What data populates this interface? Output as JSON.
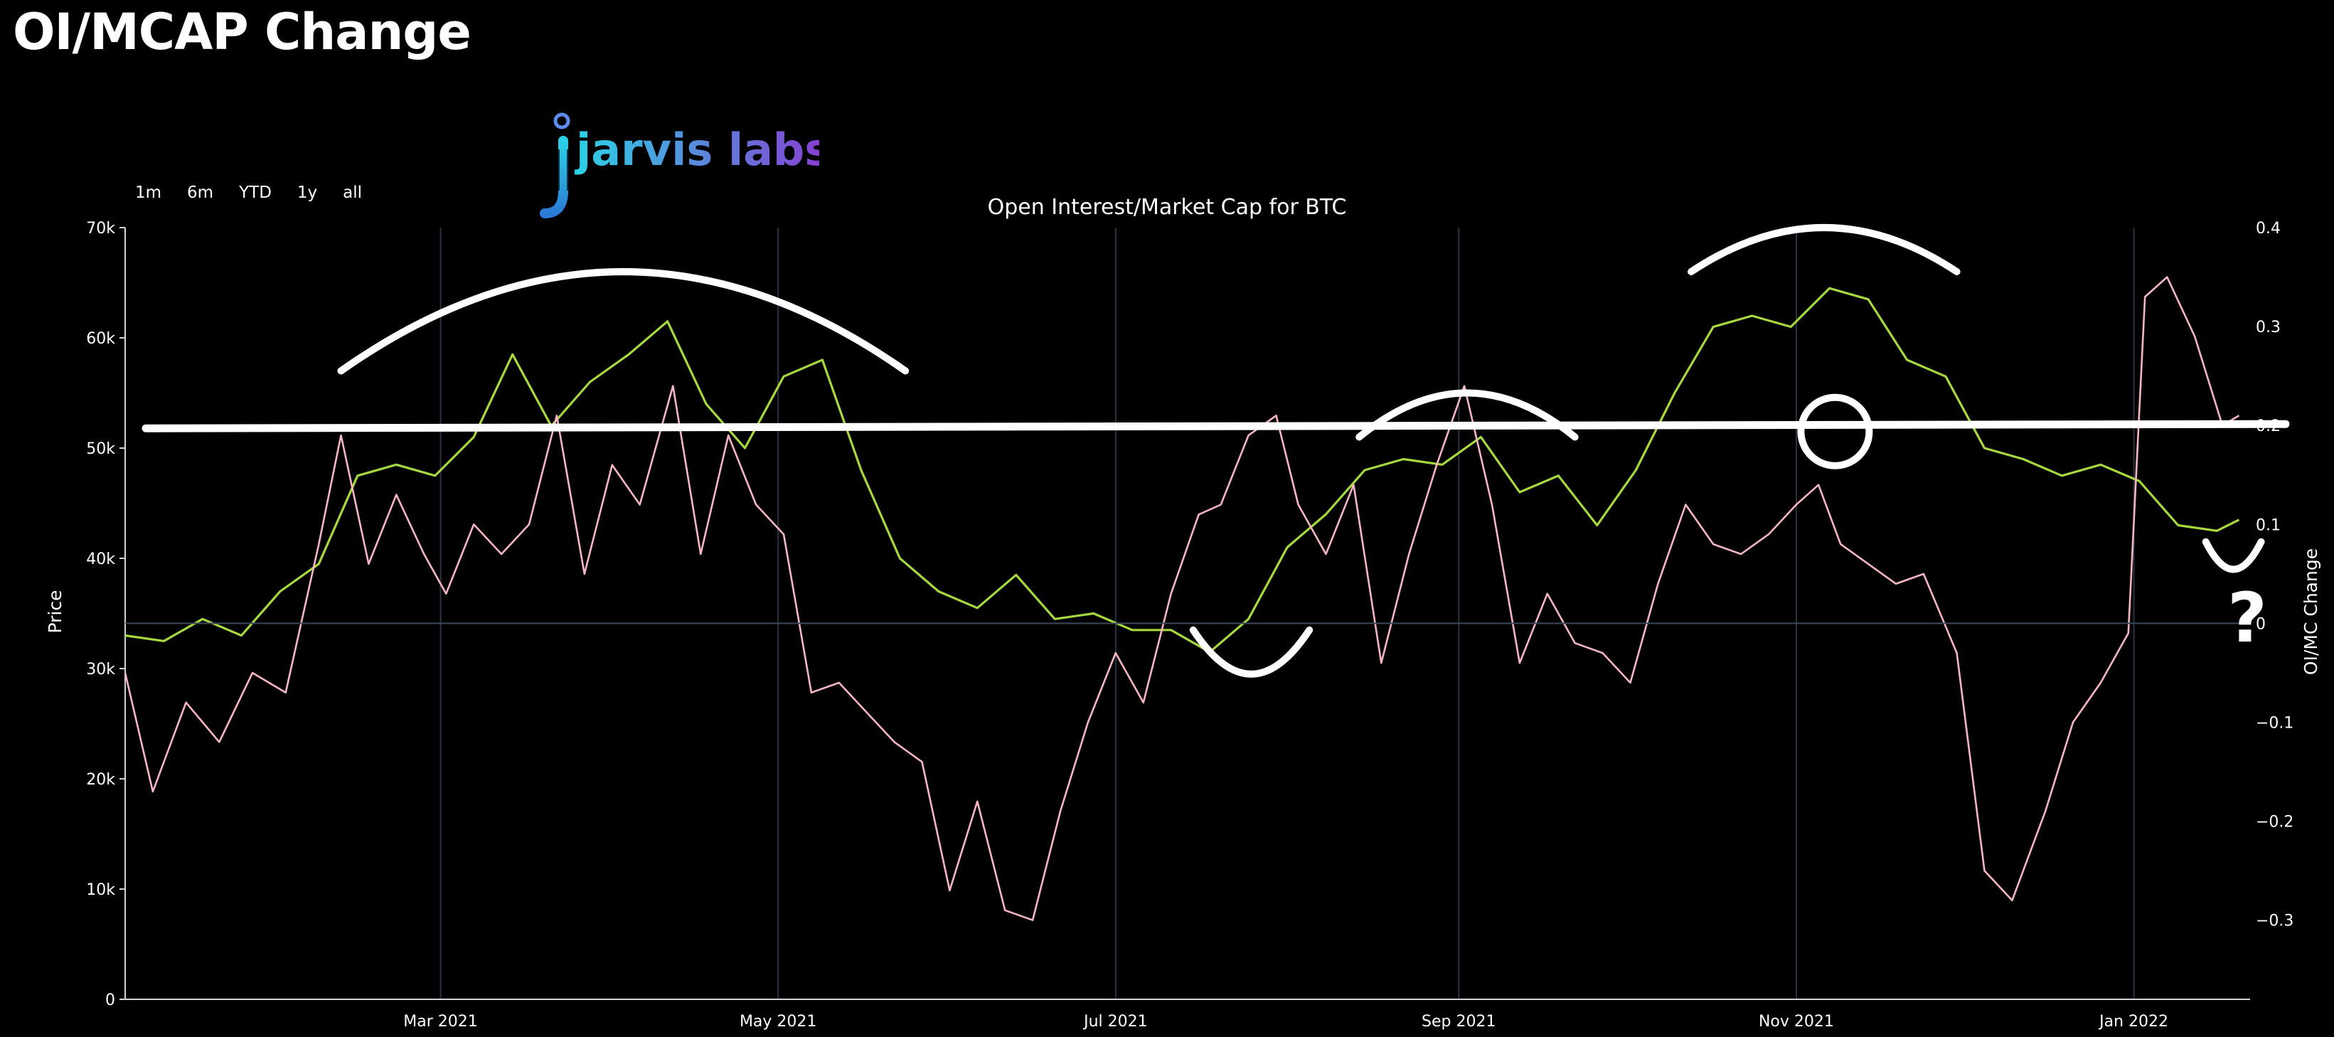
{
  "page": {
    "title": "OI/MCAP Change"
  },
  "range_buttons": [
    "1m",
    "6m",
    "YTD",
    "1y",
    "all"
  ],
  "logo": {
    "text": "jarvis labs"
  },
  "annotations": {
    "question_mark": "?"
  },
  "colors": {
    "price_line": "#f4b6c2",
    "oi_line": "#a8d83f",
    "background": "#000000",
    "annotation": "#ffffff"
  },
  "chart_data": {
    "type": "line",
    "title": "Open Interest/Market Cap for BTC",
    "ylabel": "Price",
    "y2label": "OI/MC Change",
    "ylim": [
      0,
      70000
    ],
    "y2lim": [
      -0.38,
      0.4
    ],
    "xlim": [
      "2021-01-03",
      "2022-01-22"
    ],
    "x_ticks": [
      {
        "date": "2021-03-01",
        "label": "Mar 2021"
      },
      {
        "date": "2021-05-01",
        "label": "May 2021"
      },
      {
        "date": "2021-07-01",
        "label": "Jul 2021"
      },
      {
        "date": "2021-09-01",
        "label": "Sep 2021"
      },
      {
        "date": "2021-11-01",
        "label": "Nov 2021"
      },
      {
        "date": "2022-01-01",
        "label": "Jan 2022"
      }
    ],
    "y_ticks": [
      {
        "value": 0,
        "label": "0"
      },
      {
        "value": 10000,
        "label": "10k"
      },
      {
        "value": 20000,
        "label": "20k"
      },
      {
        "value": 30000,
        "label": "30k"
      },
      {
        "value": 40000,
        "label": "40k"
      },
      {
        "value": 50000,
        "label": "50k"
      },
      {
        "value": 60000,
        "label": "60k"
      },
      {
        "value": 70000,
        "label": "70k"
      }
    ],
    "y2_ticks": [
      {
        "value": -0.3,
        "label": "−0.3"
      },
      {
        "value": -0.2,
        "label": "−0.2"
      },
      {
        "value": -0.1,
        "label": "−0.1"
      },
      {
        "value": 0,
        "label": "0"
      },
      {
        "value": 0.1,
        "label": "0.1"
      },
      {
        "value": 0.2,
        "label": "0.2"
      },
      {
        "value": 0.3,
        "label": "0.3"
      },
      {
        "value": 0.4,
        "label": "0.4"
      }
    ],
    "series": [
      {
        "axis": "y",
        "color": "#a8d83f",
        "points": [
          [
            "2021-01-03",
            33000
          ],
          [
            "2021-01-10",
            32500
          ],
          [
            "2021-01-17",
            34500
          ],
          [
            "2021-01-24",
            33000
          ],
          [
            "2021-01-31",
            37000
          ],
          [
            "2021-02-07",
            39500
          ],
          [
            "2021-02-14",
            47500
          ],
          [
            "2021-02-21",
            48500
          ],
          [
            "2021-02-28",
            47500
          ],
          [
            "2021-03-07",
            51000
          ],
          [
            "2021-03-14",
            58500
          ],
          [
            "2021-03-21",
            52000
          ],
          [
            "2021-03-28",
            56000
          ],
          [
            "2021-04-04",
            58500
          ],
          [
            "2021-04-11",
            61500
          ],
          [
            "2021-04-18",
            54000
          ],
          [
            "2021-04-25",
            50000
          ],
          [
            "2021-05-02",
            56500
          ],
          [
            "2021-05-09",
            58000
          ],
          [
            "2021-05-16",
            48000
          ],
          [
            "2021-05-23",
            40000
          ],
          [
            "2021-05-30",
            37000
          ],
          [
            "2021-06-06",
            35500
          ],
          [
            "2021-06-13",
            38500
          ],
          [
            "2021-06-20",
            34500
          ],
          [
            "2021-06-27",
            35000
          ],
          [
            "2021-07-04",
            33500
          ],
          [
            "2021-07-11",
            33500
          ],
          [
            "2021-07-18",
            31500
          ],
          [
            "2021-07-25",
            34500
          ],
          [
            "2021-08-01",
            41000
          ],
          [
            "2021-08-08",
            44000
          ],
          [
            "2021-08-15",
            48000
          ],
          [
            "2021-08-22",
            49000
          ],
          [
            "2021-08-29",
            48500
          ],
          [
            "2021-09-05",
            51000
          ],
          [
            "2021-09-12",
            46000
          ],
          [
            "2021-09-19",
            47500
          ],
          [
            "2021-09-26",
            43000
          ],
          [
            "2021-10-03",
            48000
          ],
          [
            "2021-10-10",
            55000
          ],
          [
            "2021-10-17",
            61000
          ],
          [
            "2021-10-24",
            62000
          ],
          [
            "2021-10-31",
            61000
          ],
          [
            "2021-11-07",
            64500
          ],
          [
            "2021-11-14",
            63500
          ],
          [
            "2021-11-21",
            58000
          ],
          [
            "2021-11-28",
            56500
          ],
          [
            "2021-12-05",
            50000
          ],
          [
            "2021-12-12",
            49000
          ],
          [
            "2021-12-19",
            47500
          ],
          [
            "2021-12-26",
            48500
          ],
          [
            "2022-01-02",
            47000
          ],
          [
            "2022-01-09",
            43000
          ],
          [
            "2022-01-16",
            42500
          ],
          [
            "2022-01-20",
            43500
          ]
        ]
      },
      {
        "axis": "y2",
        "color": "#f4b6c2",
        "points": [
          [
            "2021-01-03",
            -0.05
          ],
          [
            "2021-01-08",
            -0.17
          ],
          [
            "2021-01-14",
            -0.08
          ],
          [
            "2021-01-20",
            -0.12
          ],
          [
            "2021-01-26",
            -0.05
          ],
          [
            "2021-02-01",
            -0.07
          ],
          [
            "2021-02-07",
            0.08
          ],
          [
            "2021-02-11",
            0.19
          ],
          [
            "2021-02-16",
            0.06
          ],
          [
            "2021-02-21",
            0.13
          ],
          [
            "2021-02-26",
            0.07
          ],
          [
            "2021-03-02",
            0.03
          ],
          [
            "2021-03-07",
            0.1
          ],
          [
            "2021-03-12",
            0.07
          ],
          [
            "2021-03-17",
            0.1
          ],
          [
            "2021-03-22",
            0.21
          ],
          [
            "2021-03-27",
            0.05
          ],
          [
            "2021-04-01",
            0.16
          ],
          [
            "2021-04-06",
            0.12
          ],
          [
            "2021-04-12",
            0.24
          ],
          [
            "2021-04-17",
            0.07
          ],
          [
            "2021-04-22",
            0.19
          ],
          [
            "2021-04-27",
            0.12
          ],
          [
            "2021-05-02",
            0.09
          ],
          [
            "2021-05-07",
            -0.07
          ],
          [
            "2021-05-12",
            -0.06
          ],
          [
            "2021-05-17",
            -0.09
          ],
          [
            "2021-05-22",
            -0.12
          ],
          [
            "2021-05-27",
            -0.14
          ],
          [
            "2021-06-01",
            -0.27
          ],
          [
            "2021-06-06",
            -0.18
          ],
          [
            "2021-06-11",
            -0.29
          ],
          [
            "2021-06-16",
            -0.3
          ],
          [
            "2021-06-21",
            -0.19
          ],
          [
            "2021-06-26",
            -0.1
          ],
          [
            "2021-07-01",
            -0.03
          ],
          [
            "2021-07-06",
            -0.08
          ],
          [
            "2021-07-11",
            0.03
          ],
          [
            "2021-07-16",
            0.11
          ],
          [
            "2021-07-20",
            0.12
          ],
          [
            "2021-07-25",
            0.19
          ],
          [
            "2021-07-30",
            0.21
          ],
          [
            "2021-08-03",
            0.12
          ],
          [
            "2021-08-08",
            0.07
          ],
          [
            "2021-08-13",
            0.14
          ],
          [
            "2021-08-18",
            -0.04
          ],
          [
            "2021-08-23",
            0.07
          ],
          [
            "2021-08-28",
            0.16
          ],
          [
            "2021-09-02",
            0.24
          ],
          [
            "2021-09-07",
            0.12
          ],
          [
            "2021-09-12",
            -0.04
          ],
          [
            "2021-09-17",
            0.03
          ],
          [
            "2021-09-22",
            -0.02
          ],
          [
            "2021-09-27",
            -0.03
          ],
          [
            "2021-10-02",
            -0.06
          ],
          [
            "2021-10-07",
            0.04
          ],
          [
            "2021-10-12",
            0.12
          ],
          [
            "2021-10-17",
            0.08
          ],
          [
            "2021-10-22",
            0.07
          ],
          [
            "2021-10-27",
            0.09
          ],
          [
            "2021-11-01",
            0.12
          ],
          [
            "2021-11-05",
            0.14
          ],
          [
            "2021-11-09",
            0.08
          ],
          [
            "2021-11-14",
            0.06
          ],
          [
            "2021-11-19",
            0.04
          ],
          [
            "2021-11-24",
            0.05
          ],
          [
            "2021-11-30",
            -0.03
          ],
          [
            "2021-12-05",
            -0.25
          ],
          [
            "2021-12-10",
            -0.28
          ],
          [
            "2021-12-16",
            -0.19
          ],
          [
            "2021-12-21",
            -0.1
          ],
          [
            "2021-12-26",
            -0.06
          ],
          [
            "2021-12-31",
            -0.01
          ],
          [
            "2022-01-03",
            0.33
          ],
          [
            "2022-01-07",
            0.35
          ],
          [
            "2022-01-12",
            0.29
          ],
          [
            "2022-01-17",
            0.2
          ],
          [
            "2022-01-20",
            0.21
          ]
        ]
      }
    ],
    "annotations": [
      {
        "type": "hline",
        "y2": 0.2
      },
      {
        "type": "hline_faint",
        "y2": 0.0
      },
      {
        "type": "arc_up",
        "from": "2021-02-11",
        "to": "2021-05-24",
        "top": 66000,
        "base": 57000
      },
      {
        "type": "arc_up",
        "from": "2021-08-14",
        "to": "2021-09-22",
        "top": 55000,
        "base": 51000
      },
      {
        "type": "arc_up",
        "from": "2021-10-13",
        "to": "2021-11-30",
        "top": 70000,
        "base": 66000
      },
      {
        "type": "arc_down",
        "from": "2021-07-15",
        "to": "2021-08-05",
        "bottom": 29500,
        "base": 33500
      },
      {
        "type": "arc_down",
        "from": "2022-01-14",
        "to": "2022-01-24",
        "bottom": 39000,
        "base": 41500
      },
      {
        "type": "circle",
        "date": "2021-11-08",
        "value": 51500
      }
    ]
  }
}
